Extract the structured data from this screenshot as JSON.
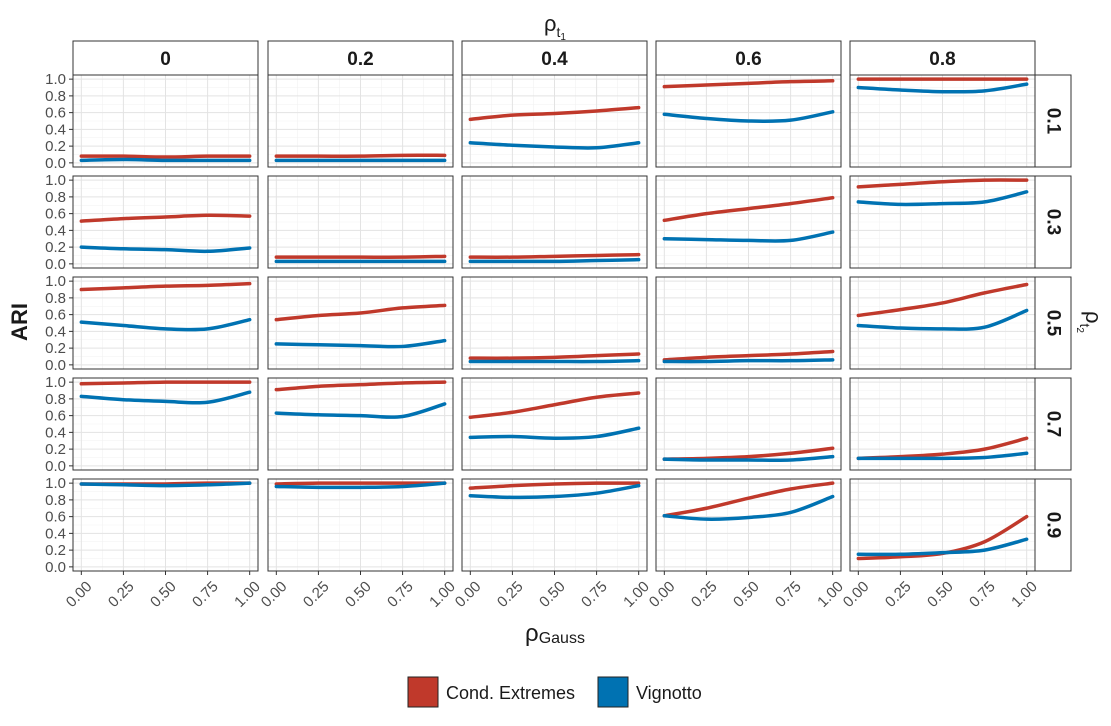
{
  "chart_data": {
    "type": "line",
    "facet_col_title": "ρ",
    "facet_col_title_subscript": "t",
    "facet_col_title_subsubscript": "1",
    "facet_row_title": "ρ",
    "facet_row_title_subscript": "t",
    "facet_row_title_subsubscript": "2",
    "xlabel": "ρ",
    "xlabel_subscript": "Gauss",
    "ylabel": "ARI",
    "col_labels": [
      "0",
      "0.2",
      "0.4",
      "0.6",
      "0.8"
    ],
    "row_labels": [
      "0.1",
      "0.3",
      "0.5",
      "0.7",
      "0.9"
    ],
    "x": [
      0,
      0.25,
      0.5,
      0.75,
      1
    ],
    "x_tick_labels": [
      "0.00",
      "0.25",
      "0.50",
      "0.75",
      "1.00"
    ],
    "y_tick_labels": [
      "0.0",
      "0.2",
      "0.4",
      "0.6",
      "0.8",
      "1.0"
    ],
    "xlim": [
      0,
      1
    ],
    "ylim": [
      0,
      1
    ],
    "grid": true,
    "legend_position": "bottom",
    "series_meta": [
      {
        "name": "Cond. Extremes",
        "color": "#C0392B"
      },
      {
        "name": "Vignotto",
        "color": "#0072B2"
      }
    ],
    "panels": [
      [
        {
          "ce": [
            0.08,
            0.08,
            0.07,
            0.08,
            0.08
          ],
          "vg": [
            0.03,
            0.04,
            0.03,
            0.03,
            0.03
          ]
        },
        {
          "ce": [
            0.08,
            0.08,
            0.08,
            0.09,
            0.09
          ],
          "vg": [
            0.03,
            0.03,
            0.03,
            0.03,
            0.03
          ]
        },
        {
          "ce": [
            0.52,
            0.57,
            0.59,
            0.62,
            0.66
          ],
          "vg": [
            0.24,
            0.21,
            0.19,
            0.18,
            0.24
          ]
        },
        {
          "ce": [
            0.91,
            0.93,
            0.95,
            0.97,
            0.98
          ],
          "vg": [
            0.58,
            0.53,
            0.5,
            0.51,
            0.61
          ]
        },
        {
          "ce": [
            1.0,
            1.0,
            1.0,
            1.0,
            1.0
          ],
          "vg": [
            0.9,
            0.87,
            0.85,
            0.86,
            0.94
          ]
        }
      ],
      [
        {
          "ce": [
            0.51,
            0.54,
            0.56,
            0.58,
            0.57
          ],
          "vg": [
            0.2,
            0.18,
            0.17,
            0.15,
            0.19
          ]
        },
        {
          "ce": [
            0.08,
            0.08,
            0.08,
            0.08,
            0.09
          ],
          "vg": [
            0.03,
            0.03,
            0.03,
            0.03,
            0.03
          ]
        },
        {
          "ce": [
            0.08,
            0.08,
            0.09,
            0.1,
            0.11
          ],
          "vg": [
            0.03,
            0.03,
            0.03,
            0.04,
            0.05
          ]
        },
        {
          "ce": [
            0.52,
            0.6,
            0.66,
            0.72,
            0.79
          ],
          "vg": [
            0.3,
            0.29,
            0.28,
            0.28,
            0.38
          ]
        },
        {
          "ce": [
            0.92,
            0.95,
            0.98,
            1.0,
            1.0
          ],
          "vg": [
            0.74,
            0.71,
            0.72,
            0.74,
            0.86
          ]
        }
      ],
      [
        {
          "ce": [
            0.9,
            0.92,
            0.94,
            0.95,
            0.97
          ],
          "vg": [
            0.51,
            0.47,
            0.43,
            0.43,
            0.54
          ]
        },
        {
          "ce": [
            0.54,
            0.59,
            0.62,
            0.68,
            0.71
          ],
          "vg": [
            0.25,
            0.24,
            0.23,
            0.22,
            0.29
          ]
        },
        {
          "ce": [
            0.08,
            0.08,
            0.09,
            0.11,
            0.13
          ],
          "vg": [
            0.04,
            0.04,
            0.04,
            0.04,
            0.05
          ]
        },
        {
          "ce": [
            0.06,
            0.09,
            0.11,
            0.13,
            0.16
          ],
          "vg": [
            0.04,
            0.04,
            0.05,
            0.05,
            0.06
          ]
        },
        {
          "ce": [
            0.59,
            0.66,
            0.74,
            0.86,
            0.96
          ],
          "vg": [
            0.47,
            0.44,
            0.43,
            0.45,
            0.65
          ]
        }
      ],
      [
        {
          "ce": [
            0.98,
            0.99,
            1.0,
            1.0,
            1.0
          ],
          "vg": [
            0.83,
            0.79,
            0.77,
            0.76,
            0.88
          ]
        },
        {
          "ce": [
            0.91,
            0.95,
            0.97,
            0.99,
            1.0
          ],
          "vg": [
            0.63,
            0.61,
            0.6,
            0.59,
            0.74
          ]
        },
        {
          "ce": [
            0.58,
            0.64,
            0.73,
            0.82,
            0.87
          ],
          "vg": [
            0.34,
            0.35,
            0.33,
            0.35,
            0.45
          ]
        },
        {
          "ce": [
            0.08,
            0.09,
            0.11,
            0.15,
            0.21
          ],
          "vg": [
            0.08,
            0.07,
            0.07,
            0.07,
            0.11
          ]
        },
        {
          "ce": [
            0.09,
            0.11,
            0.14,
            0.2,
            0.33
          ],
          "vg": [
            0.09,
            0.09,
            0.09,
            0.1,
            0.15
          ]
        }
      ],
      [
        {
          "ce": [
            0.99,
            0.99,
            0.99,
            1.0,
            1.0
          ],
          "vg": [
            0.99,
            0.98,
            0.97,
            0.98,
            1.0
          ]
        },
        {
          "ce": [
            0.99,
            1.0,
            1.0,
            1.0,
            1.0
          ],
          "vg": [
            0.96,
            0.95,
            0.95,
            0.96,
            1.0
          ]
        },
        {
          "ce": [
            0.94,
            0.97,
            0.99,
            1.0,
            1.0
          ],
          "vg": [
            0.85,
            0.83,
            0.84,
            0.88,
            0.97
          ]
        },
        {
          "ce": [
            0.61,
            0.7,
            0.82,
            0.93,
            1.0
          ],
          "vg": [
            0.61,
            0.57,
            0.59,
            0.65,
            0.84
          ]
        },
        {
          "ce": [
            0.1,
            0.12,
            0.16,
            0.3,
            0.6
          ],
          "vg": [
            0.15,
            0.15,
            0.17,
            0.2,
            0.33
          ]
        }
      ]
    ]
  }
}
